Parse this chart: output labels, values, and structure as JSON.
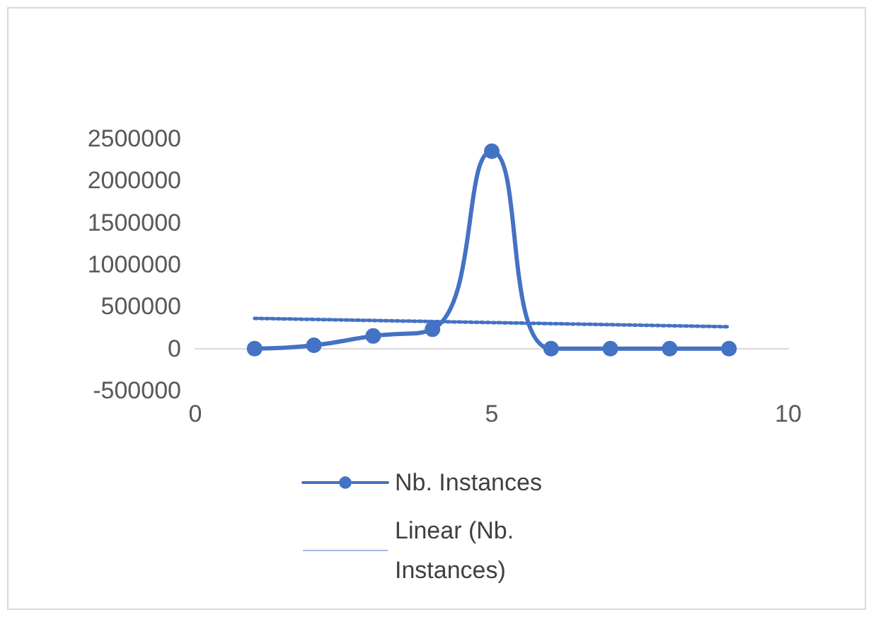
{
  "chart_data": {
    "type": "line",
    "x": [
      1,
      2,
      3,
      4,
      5,
      6,
      7,
      8,
      9
    ],
    "series": [
      {
        "name": "Nb. Instances",
        "color": "#4472c4",
        "marker": "circle",
        "line_style": "solid",
        "values": [
          0,
          40000,
          150000,
          230000,
          2350000,
          0,
          0,
          0,
          0
        ]
      },
      {
        "name": "Linear (Nb. Instances)",
        "color": "#4472c4",
        "marker": "none",
        "line_style": "dotted",
        "x": [
          1,
          9
        ],
        "values": [
          360000,
          260000
        ]
      }
    ],
    "xlim": [
      0,
      10
    ],
    "xticks": [
      0,
      5,
      10
    ],
    "ylim": [
      -500000,
      2500000
    ],
    "yticks": [
      -500000,
      0,
      500000,
      1000000,
      1500000,
      2000000,
      2500000
    ],
    "grid": false,
    "legend": "bottom"
  }
}
